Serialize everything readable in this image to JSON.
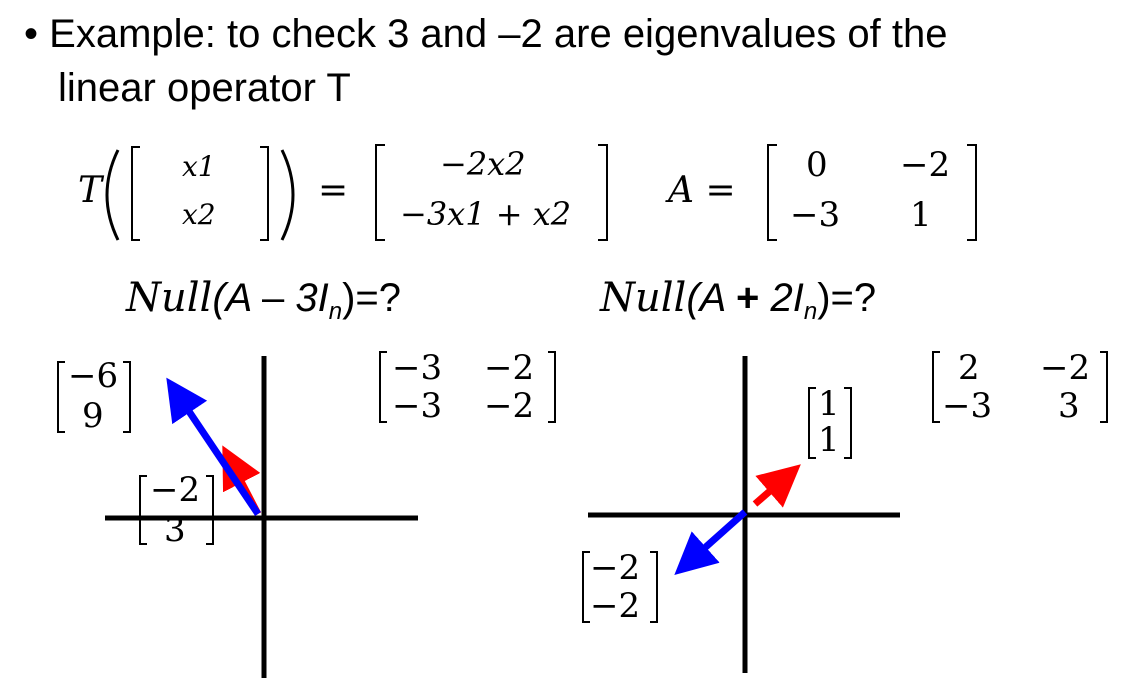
{
  "slide": {
    "bullet_symbol": "•",
    "bullet_text_line1": "Example: to check 3 and –2 are eigenvalues of the",
    "bullet_text_line2": "linear operator T"
  },
  "definition": {
    "T_label": "T",
    "input_vector": [
      "x1",
      "x2"
    ],
    "equals": "=",
    "output_vector": [
      "−2x2",
      "−3x1 + x2"
    ],
    "A_label": "A =",
    "A_matrix": [
      [
        "0",
        "−2"
      ],
      [
        "−3",
        "1"
      ]
    ]
  },
  "left_panel": {
    "null_prefix": "Null",
    "null_open": "(A ",
    "null_op": "–",
    "null_scalar": " 3I",
    "null_sub": "n",
    "null_close": ")=?",
    "matrix": [
      [
        "−3",
        "−2"
      ],
      [
        "−3",
        "−2"
      ]
    ],
    "vector_blue": [
      "−6",
      "9"
    ],
    "vector_red": [
      "−2",
      "3"
    ],
    "colors": {
      "blue": "#0000ff",
      "red": "#ff0000"
    }
  },
  "right_panel": {
    "null_prefix": "Null",
    "null_open": "(A ",
    "null_op": "+",
    "null_scalar": " 2I",
    "null_sub": "n",
    "null_close": ")=?",
    "matrix": [
      [
        "2",
        "−2"
      ],
      [
        "−3",
        "3"
      ]
    ],
    "vector_red": [
      "1",
      "1"
    ],
    "vector_blue": [
      "−2",
      "−2"
    ],
    "colors": {
      "blue": "#0000ff",
      "red": "#ff0000"
    }
  }
}
